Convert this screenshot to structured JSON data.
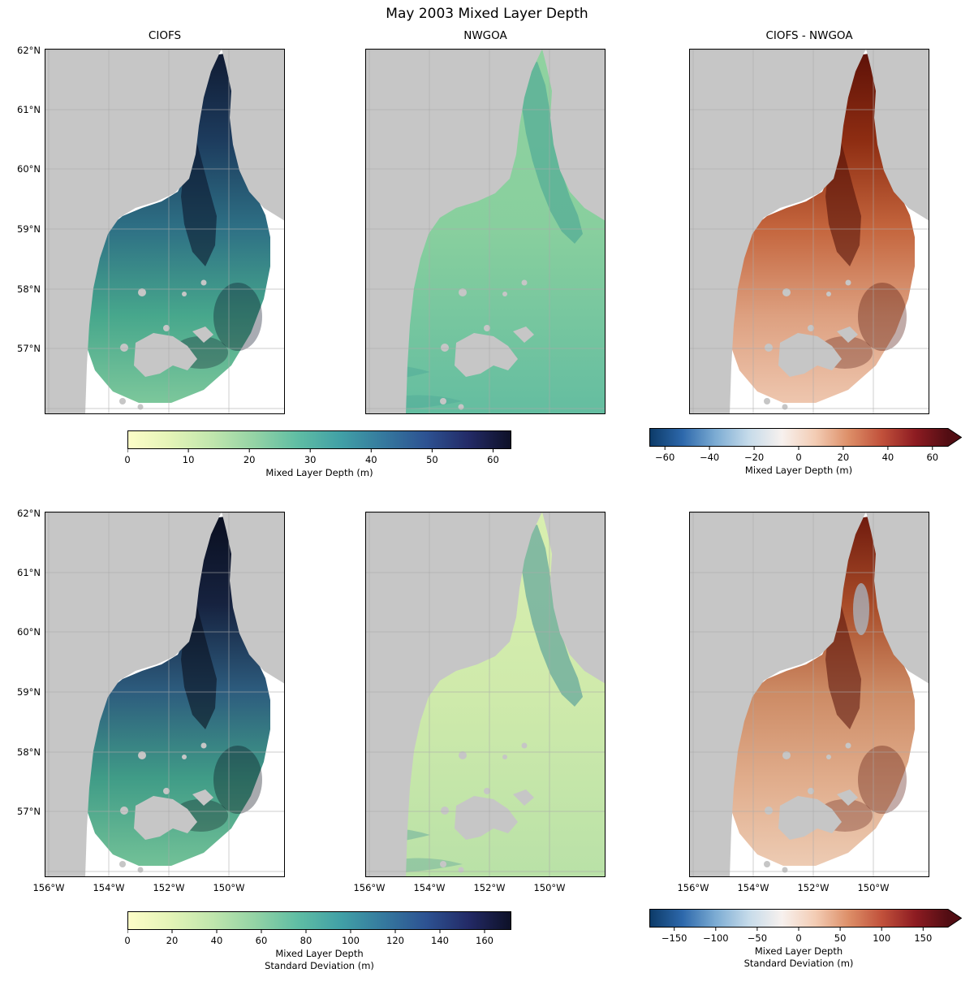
{
  "title": "May 2003 Mixed Layer Depth",
  "columns": [
    "CIOFS",
    "NWGOA",
    "CIOFS - NWGOA"
  ],
  "axes": {
    "lat_ticks": [
      "62°N",
      "61°N",
      "60°N",
      "59°N",
      "58°N",
      "57°N"
    ],
    "lon_ticks": [
      "156°W",
      "154°W",
      "152°W",
      "150°W"
    ]
  },
  "colorbars": {
    "mean_seq": {
      "style": "seq",
      "arrow": false,
      "range": [
        0,
        63
      ],
      "values": [
        0,
        10,
        20,
        30,
        40,
        50,
        60
      ],
      "labels": [
        "0",
        "10",
        "20",
        "30",
        "40",
        "50",
        "60"
      ],
      "title_lines": [
        "Mixed Layer Depth (m)"
      ]
    },
    "mean_div": {
      "style": "div",
      "arrow": true,
      "range": [
        -67,
        67
      ],
      "values": [
        -60,
        -40,
        -20,
        0,
        20,
        40,
        60
      ],
      "labels": [
        "−60",
        "−40",
        "−20",
        "0",
        "20",
        "40",
        "60"
      ],
      "title_lines": [
        "Mixed Layer Depth (m)"
      ]
    },
    "std_seq": {
      "style": "seq",
      "arrow": false,
      "range": [
        0,
        172
      ],
      "values": [
        0,
        20,
        40,
        60,
        80,
        100,
        120,
        140,
        160
      ],
      "labels": [
        "0",
        "20",
        "40",
        "60",
        "80",
        "100",
        "120",
        "140",
        "160"
      ],
      "title_lines": [
        "Mixed Layer Depth",
        "Standard Deviation (m)"
      ]
    },
    "std_div": {
      "style": "div",
      "arrow": true,
      "range": [
        -180,
        180
      ],
      "values": [
        -150,
        -100,
        -50,
        0,
        50,
        100,
        150
      ],
      "labels": [
        "−150",
        "−100",
        "−50",
        "0",
        "50",
        "100",
        "150"
      ],
      "title_lines": [
        "Mixed Layer Depth",
        "Standard Deviation (m)"
      ]
    }
  },
  "colors": {
    "land": "#c6c6c6",
    "grid": "#aaaaaa",
    "border": "#000000",
    "background": "#ffffff",
    "seq_gradient": [
      "#fdfdc8",
      "#e4f4b7",
      "#c0e6ad",
      "#93d3a5",
      "#5fbda4",
      "#41a0a6",
      "#35799e",
      "#2d5292",
      "#232a66",
      "#0d1026"
    ],
    "div_gradient": [
      "#0c3a67",
      "#2d68ab",
      "#7cacd3",
      "#c6dbea",
      "#f7f1ee",
      "#f3ccb4",
      "#dd8f68",
      "#c1513b",
      "#8e1c22",
      "#520d13"
    ]
  },
  "map_panels": [
    {
      "name": "ciofs-mld-map",
      "kind": "domain",
      "grad": [
        "#101b33",
        "#1d3c5e",
        "#2e7085",
        "#47a78c",
        "#7cc79b"
      ],
      "blob": "#0a1126",
      "blue_patch": false
    },
    {
      "name": "nwgoa-mld-map",
      "kind": "full",
      "grad": [
        "#90d2a0",
        "#88cf9e",
        "#64bda0"
      ],
      "channel": "#42a094",
      "blue_patch": false
    },
    {
      "name": "diff-mld-map",
      "kind": "domain",
      "grad": [
        "#5f1208",
        "#8e2d12",
        "#c4653d",
        "#dda080",
        "#eec6ae"
      ],
      "blob": "#4c0d05",
      "blue_patch": false
    },
    {
      "name": "ciofs-std-map",
      "kind": "domain",
      "grad": [
        "#0a0f20",
        "#16223f",
        "#2d5c7e",
        "#409c87",
        "#72c197"
      ],
      "blob": "#070b17",
      "blue_patch": false
    },
    {
      "name": "nwgoa-std-map",
      "kind": "full",
      "grad": [
        "#d8efaf",
        "#cfeaab",
        "#b9e1a7"
      ],
      "channel": "#3f9097",
      "blue_patch": false
    },
    {
      "name": "diff-std-map",
      "kind": "domain",
      "grad": [
        "#701b0e",
        "#a84b28",
        "#cc8a64",
        "#e0ac8b",
        "#edcbb3"
      ],
      "blob": "#561009",
      "blue_patch": true
    }
  ],
  "chart_data": {
    "type": "heatmap",
    "title": "May 2003 Mixed Layer Depth",
    "layout": {
      "rows": 2,
      "cols": 3,
      "column_titles": [
        "CIOFS",
        "NWGOA",
        "CIOFS - NWGOA"
      ]
    },
    "region": {
      "area": "Cook Inlet and northern Gulf of Alaska (Kodiak Island visible)",
      "lat_ticks": [
        "62°N",
        "61°N",
        "60°N",
        "59°N",
        "58°N",
        "57°N"
      ],
      "lon_ticks": [
        "156°W",
        "154°W",
        "152°W",
        "150°W"
      ],
      "land_color": "gray",
      "no_data_color": "white"
    },
    "panels": [
      {
        "row": 1,
        "col": 1,
        "title": "CIOFS",
        "quantity": "Mixed Layer Depth (m)",
        "colorbar": "row1-sequential",
        "description": "Deep mixed layers 30-60+ m (dark navy) along the Cook Inlet channel and in patches southeast of Kodiak; 10-25 m (green-teal) over the rest of the fan-shaped model domain; white (no data) outside the domain"
      },
      {
        "row": 1,
        "col": 2,
        "title": "NWGOA",
        "quantity": "Mixed Layer Depth (m)",
        "colorbar": "row1-sequential",
        "description": "Nearly uniform shallow mixed layer ~8-15 m (light green) everywhere, slightly deeper teal values in upper Cook Inlet and the southwest corner"
      },
      {
        "row": 1,
        "col": 3,
        "title": "CIOFS - NWGOA",
        "quantity": "Mixed Layer Depth difference (m)",
        "colorbar": "row1-diverging",
        "description": "CIOFS deeper than NWGOA almost everywhere: +20 to +60 m (dark red) in the Cook Inlet channel and southeast of Kodiak, +5 to +20 m (light red) across the rest of the domain"
      },
      {
        "row": 2,
        "col": 1,
        "title": "CIOFS",
        "quantity": "Mixed Layer Depth Standard Deviation (m)",
        "colorbar": "row2-sequential",
        "description": "Very high variability 80-170 m (near-black) in central Cook Inlet channels; 20-60 m (green-teal) over the shelf fan"
      },
      {
        "row": 2,
        "col": 2,
        "title": "NWGOA",
        "quantity": "Mixed Layer Depth Standard Deviation (m)",
        "colorbar": "row2-sequential",
        "description": "Low variability ~5-30 m (pale yellow-green) overall with teal filaments of higher variability in Cook Inlet and near the southwest corner"
      },
      {
        "row": 2,
        "col": 3,
        "title": "CIOFS - NWGOA",
        "quantity": "Mixed Layer Depth Standard Deviation difference (m)",
        "colorbar": "row2-diverging",
        "description": "CIOFS more variable: +50 to +150 m (dark red) in central Cook Inlet and southeast of Kodiak, +10 to +50 m (light red) elsewhere; a few small negative (pale blue) patches in the upper inlet"
      }
    ],
    "colorbars": [
      {
        "id": "row1-sequential",
        "applies_to": "row 1 cols 1-2",
        "label": "Mixed Layer Depth (m)",
        "ticks": [
          0,
          10,
          20,
          30,
          40,
          50,
          60
        ],
        "colormap": "sequential light-yellow → green → teal → blue → near-black",
        "extend": "none"
      },
      {
        "id": "row1-diverging",
        "applies_to": "row 1 col 3",
        "label": "Mixed Layer Depth (m)",
        "ticks": [
          -60,
          -40,
          -20,
          0,
          20,
          40,
          60
        ],
        "colormap": "diverging dark-blue → white → dark-red",
        "extend": "max (right arrow)"
      },
      {
        "id": "row2-sequential",
        "applies_to": "row 2 cols 1-2",
        "label": "Mixed Layer Depth Standard Deviation (m)",
        "ticks": [
          0,
          20,
          40,
          60,
          80,
          100,
          120,
          140,
          160
        ],
        "colormap": "sequential light-yellow → green → teal → blue → near-black",
        "extend": "none"
      },
      {
        "id": "row2-diverging",
        "applies_to": "row 2 col 3",
        "label": "Mixed Layer Depth Standard Deviation (m)",
        "ticks": [
          -150,
          -100,
          -50,
          0,
          50,
          100,
          150
        ],
        "colormap": "diverging dark-blue → white → dark-red",
        "extend": "max (right arrow)"
      }
    ]
  }
}
